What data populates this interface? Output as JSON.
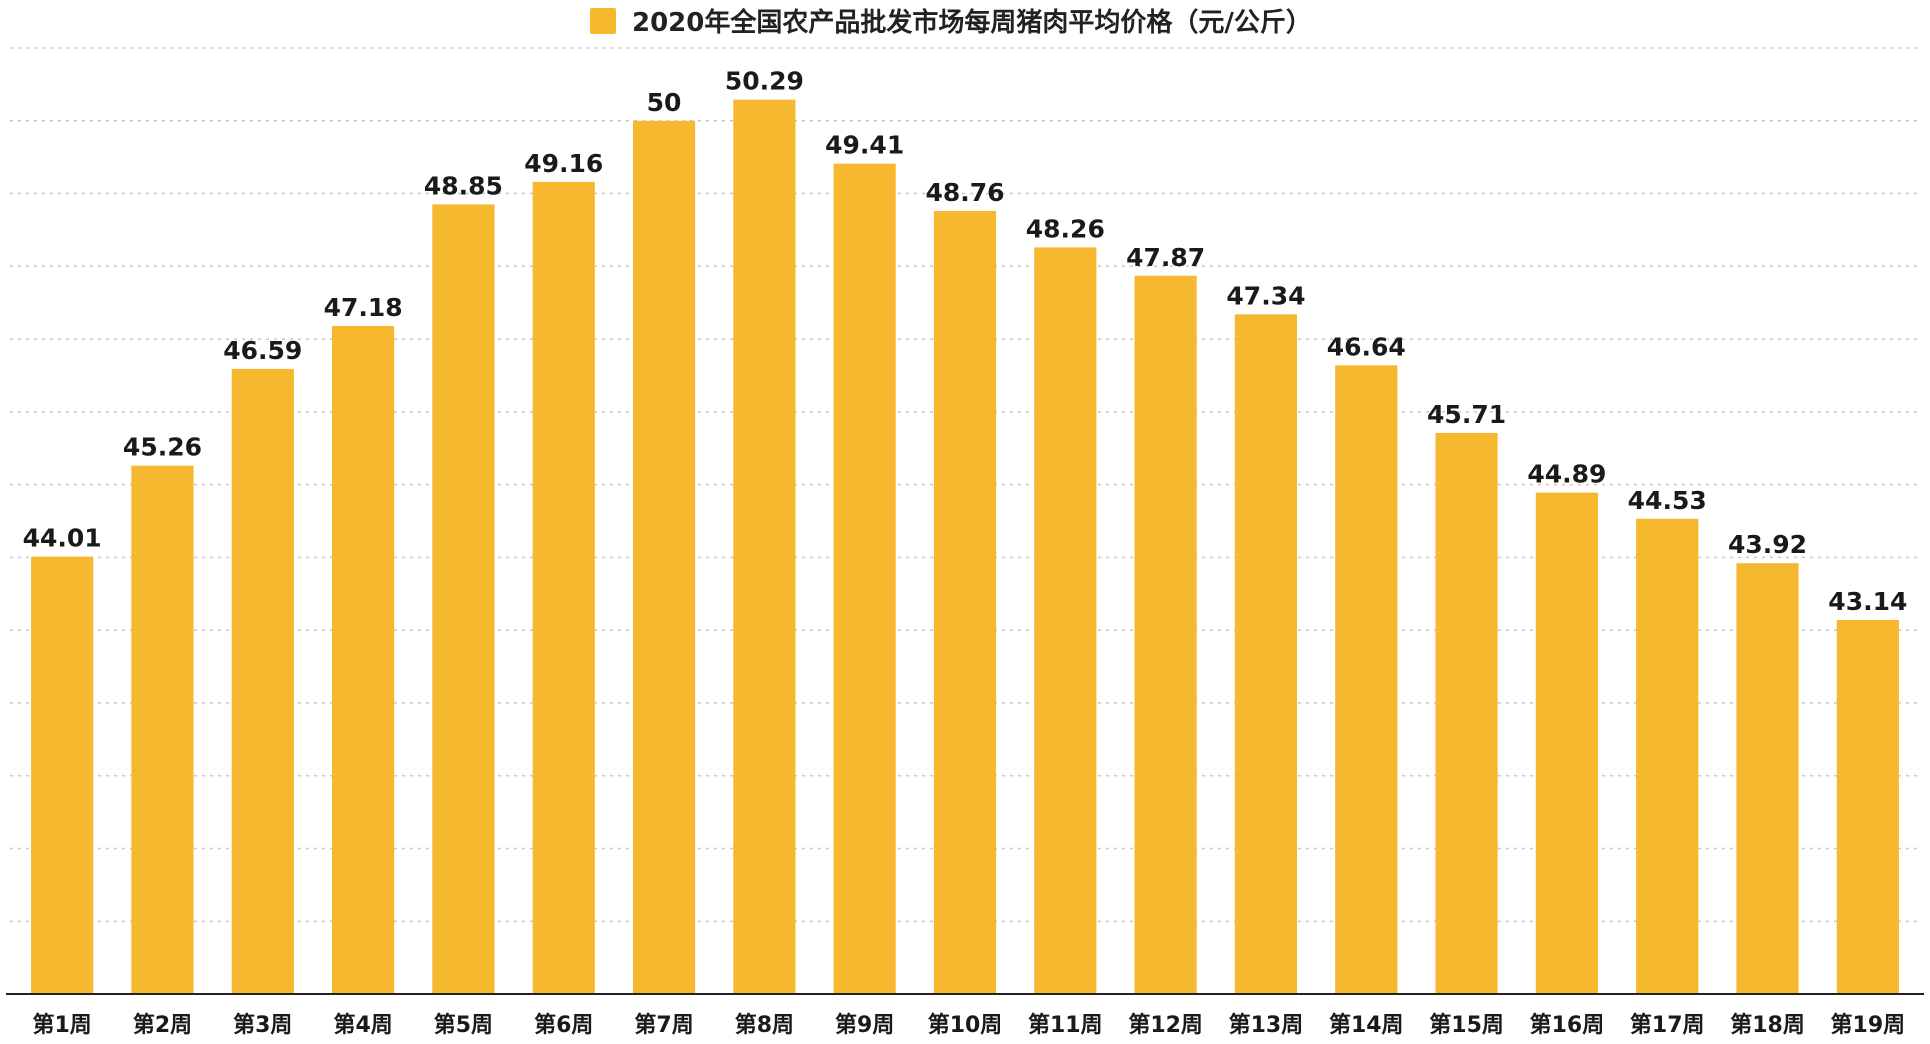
{
  "colors": {
    "bar": "#F5B82E",
    "grid": "#c8c8c8",
    "axis": "#222222"
  },
  "chart_data": {
    "type": "bar",
    "title": "",
    "legend": {
      "position": "top-center",
      "label": "2020年全国农产品批发市场每周猪肉平均价格（元/公斤）"
    },
    "categories": [
      "第1周",
      "第2周",
      "第3周",
      "第4周",
      "第5周",
      "第6周",
      "第7周",
      "第8周",
      "第9周",
      "第10周",
      "第11周",
      "第12周",
      "第13周",
      "第14周",
      "第15周",
      "第16周",
      "第17周",
      "第18周",
      "第19周"
    ],
    "series": [
      {
        "name": "2020年全国农产品批发市场每周猪肉平均价格（元/公斤）",
        "values": [
          44.01,
          45.26,
          46.59,
          47.18,
          48.85,
          49.16,
          50,
          50.29,
          49.41,
          48.76,
          48.26,
          47.87,
          47.34,
          46.64,
          45.71,
          44.89,
          44.53,
          43.92,
          43.14
        ],
        "labels": [
          "44.01",
          "45.26",
          "46.59",
          "47.18",
          "48.85",
          "49.16",
          "50",
          "50.29",
          "49.41",
          "48.76",
          "48.26",
          "47.87",
          "47.34",
          "46.64",
          "45.71",
          "44.89",
          "44.53",
          "43.92",
          "43.14"
        ]
      }
    ],
    "ylim": [
      38,
      51
    ],
    "grid": true,
    "xlabel": "",
    "ylabel": ""
  }
}
